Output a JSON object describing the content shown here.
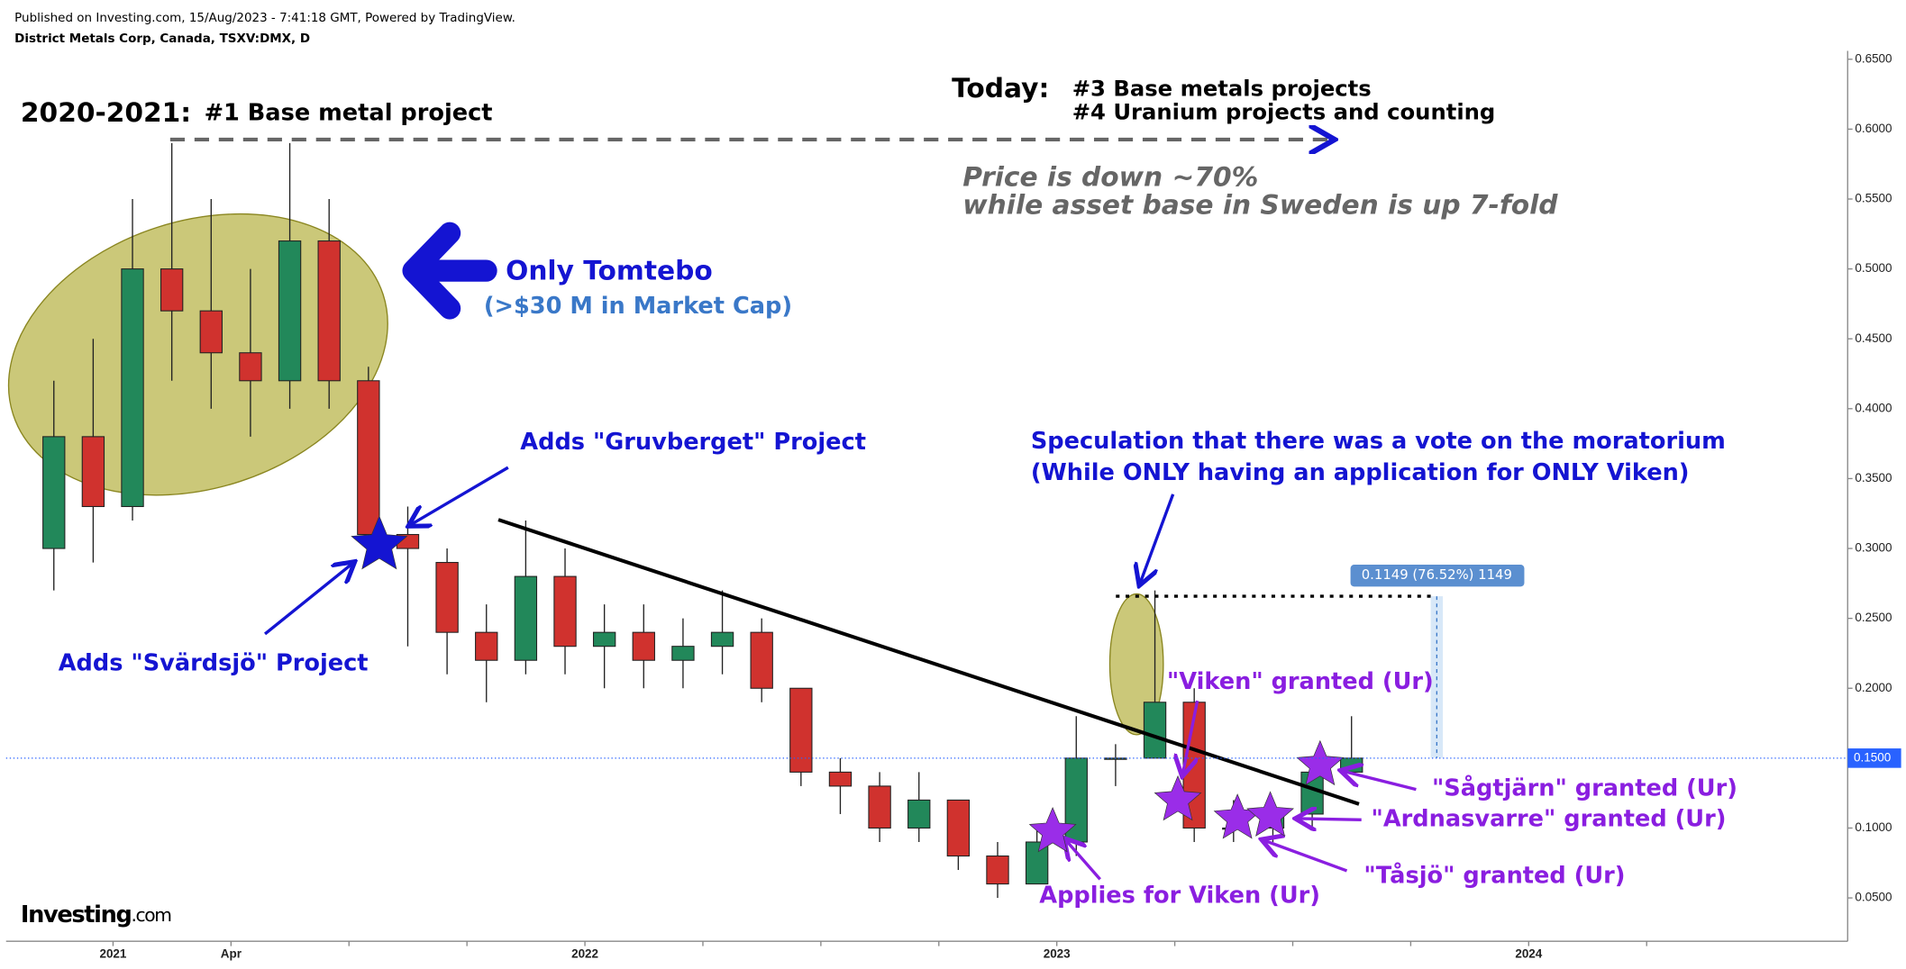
{
  "header": {
    "published": "Published on Investing.com, 15/Aug/2023 - 7:41:18 GMT, Powered by TradingView.",
    "symbol": "District Metals Corp, Canada, TSXV:DMX, D"
  },
  "logo": {
    "name": "Investing",
    "suffix": ".com"
  },
  "chart_data": {
    "type": "candlestick",
    "x": [
      "2020-11",
      "2020-12",
      "2021-01",
      "2021-02",
      "2021-03",
      "2021-04",
      "2021-05",
      "2021-06",
      "2021-07",
      "2021-08",
      "2021-09",
      "2021-10",
      "2021-11",
      "2021-12",
      "2022-01",
      "2022-02",
      "2022-03",
      "2022-04",
      "2022-05",
      "2022-06",
      "2022-07",
      "2022-08",
      "2022-09",
      "2022-10",
      "2022-11",
      "2022-12",
      "2023-01",
      "2023-02",
      "2023-03",
      "2023-04",
      "2023-05",
      "2023-06",
      "2023-07",
      "2023-08"
    ],
    "open": [
      0.3,
      0.38,
      0.33,
      0.5,
      0.47,
      0.44,
      0.42,
      0.52,
      0.42,
      0.31,
      0.29,
      0.24,
      0.22,
      0.28,
      0.23,
      0.24,
      0.22,
      0.23,
      0.24,
      0.2,
      0.14,
      0.13,
      0.1,
      0.12,
      0.08,
      0.06,
      0.09,
      0.15,
      0.15,
      0.19,
      0.1,
      0.1,
      0.11,
      0.14
    ],
    "high": [
      0.42,
      0.45,
      0.55,
      0.59,
      0.55,
      0.5,
      0.59,
      0.55,
      0.43,
      0.33,
      0.3,
      0.26,
      0.32,
      0.3,
      0.26,
      0.26,
      0.25,
      0.27,
      0.25,
      0.2,
      0.15,
      0.14,
      0.14,
      0.12,
      0.09,
      0.1,
      0.18,
      0.16,
      0.27,
      0.2,
      0.12,
      0.12,
      0.15,
      0.18
    ],
    "low": [
      0.27,
      0.29,
      0.32,
      0.42,
      0.4,
      0.38,
      0.4,
      0.4,
      0.3,
      0.23,
      0.21,
      0.19,
      0.21,
      0.21,
      0.2,
      0.2,
      0.2,
      0.21,
      0.19,
      0.13,
      0.11,
      0.09,
      0.09,
      0.07,
      0.05,
      0.06,
      0.08,
      0.13,
      0.15,
      0.09,
      0.09,
      0.09,
      0.1,
      0.14
    ],
    "close": [
      0.38,
      0.33,
      0.5,
      0.47,
      0.44,
      0.42,
      0.52,
      0.42,
      0.31,
      0.3,
      0.24,
      0.22,
      0.28,
      0.23,
      0.24,
      0.22,
      0.23,
      0.24,
      0.2,
      0.14,
      0.13,
      0.1,
      0.12,
      0.08,
      0.06,
      0.09,
      0.15,
      0.15,
      0.19,
      0.1,
      0.1,
      0.11,
      0.14,
      0.15
    ],
    "up_color": "#22885a",
    "down_color": "#d0322e",
    "ylim": [
      0.019,
      0.656
    ],
    "yticks": [
      {
        "value": 0.05,
        "label": "0.0500"
      },
      {
        "value": 0.1,
        "label": "0.1000"
      },
      {
        "value": 0.15,
        "label": "0.1500"
      },
      {
        "value": 0.2,
        "label": "0.2000"
      },
      {
        "value": 0.25,
        "label": "0.2500"
      },
      {
        "value": 0.3,
        "label": "0.3000"
      },
      {
        "value": 0.35,
        "label": "0.3500"
      },
      {
        "value": 0.4,
        "label": "0.4000"
      },
      {
        "value": 0.45,
        "label": "0.4500"
      },
      {
        "value": 0.5,
        "label": "0.5000"
      },
      {
        "value": 0.55,
        "label": "0.5500"
      },
      {
        "value": 0.6,
        "label": "0.6000"
      },
      {
        "value": 0.65,
        "label": "0.6500"
      }
    ],
    "xticks": [
      {
        "value": "2021-01",
        "label": "2021"
      },
      {
        "value": "2021-04",
        "label": "Apr"
      },
      {
        "value": "2021-07",
        "label": null
      },
      {
        "value": "2021-10",
        "label": null
      },
      {
        "value": "2022-01",
        "label": "2022"
      },
      {
        "value": "2022-04",
        "label": null
      },
      {
        "value": "2022-07",
        "label": null
      },
      {
        "value": "2022-10",
        "label": null
      },
      {
        "value": "2023-01",
        "label": "2023"
      },
      {
        "value": "2023-04",
        "label": null
      },
      {
        "value": "2023-07",
        "label": null
      },
      {
        "value": "2023-10",
        "label": null
      },
      {
        "value": "2024-01",
        "label": "2024"
      },
      {
        "value": "2024-04",
        "label": null
      }
    ],
    "last_price": {
      "value": 0.15,
      "label": "0.1500"
    },
    "measure_label": "0.1149 (76.52%) 1149",
    "annotations": {
      "period": "2020-2021:",
      "period_note": "#1 Base metal project",
      "today": "Today:",
      "today_1": "#3 Base metals projects",
      "today_2": "#4 Uranium projects and counting",
      "price_1": "Price is down ~70%",
      "price_2": "while asset base in Sweden is up 7-fold",
      "tomtebo": "Only Tomtebo",
      "market_cap": "(>$30 M in Market Cap)",
      "gruvberget": "Adds \"Gruvberget\" Project",
      "speculation_1": "Speculation that there was a vote on the moratorium",
      "speculation_2": "(While ONLY having an application for ONLY Viken)",
      "svardsjo": "Adds \"Svärdsjö\" Project",
      "viken": "\"Viken\" granted (Ur)",
      "sagtjarn": "\"Sågtjärn\" granted (Ur)",
      "ardnasvarre": "\"Ardnasvarre\" granted (Ur)",
      "tasjo": "\"Tåsjö\" granted (Ur)",
      "applies": "Applies for Viken (Ur)"
    }
  }
}
